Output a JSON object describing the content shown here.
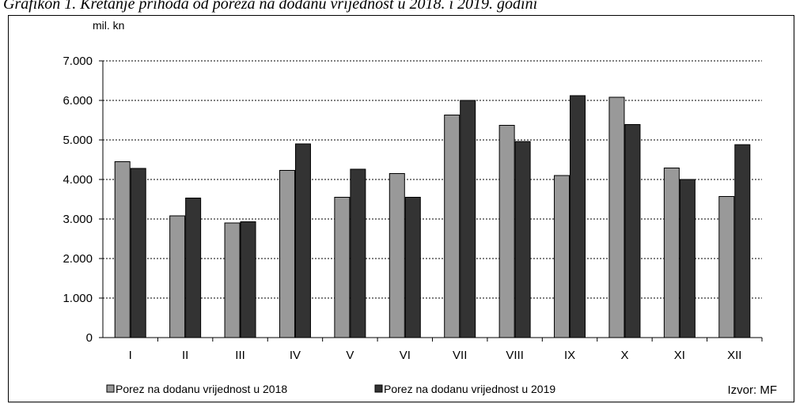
{
  "caption": "Grafikon 1. Kretanje prihoda od poreza na dodanu vrijednost u 2018. i 2019. godini",
  "chart_data": {
    "type": "bar",
    "unit_label": "mil. kn",
    "categories": [
      "I",
      "II",
      "III",
      "IV",
      "V",
      "VI",
      "VII",
      "VIII",
      "IX",
      "X",
      "XI",
      "XII"
    ],
    "series": [
      {
        "name": "Porez na dodanu vrijednost u 2018",
        "color": "#999999",
        "values": [
          4450,
          3080,
          2900,
          4230,
          3550,
          4150,
          5630,
          5370,
          4100,
          6080,
          4290,
          3570
        ]
      },
      {
        "name": "Porez na dodanu vrijednost u 2019",
        "color": "#333333",
        "values": [
          4280,
          3530,
          2930,
          4900,
          4260,
          3550,
          6000,
          4960,
          6120,
          5390,
          4000,
          4880
        ]
      }
    ],
    "ylim": [
      0,
      7000
    ],
    "yticks": [
      0,
      1000,
      2000,
      3000,
      4000,
      5000,
      6000,
      7000
    ],
    "ytick_labels": [
      "0",
      "1.000",
      "2.000",
      "3.000",
      "4.000",
      "5.000",
      "6.000",
      "7.000"
    ],
    "grid": true,
    "legend_position": "bottom",
    "source": "Izvor: MF"
  }
}
